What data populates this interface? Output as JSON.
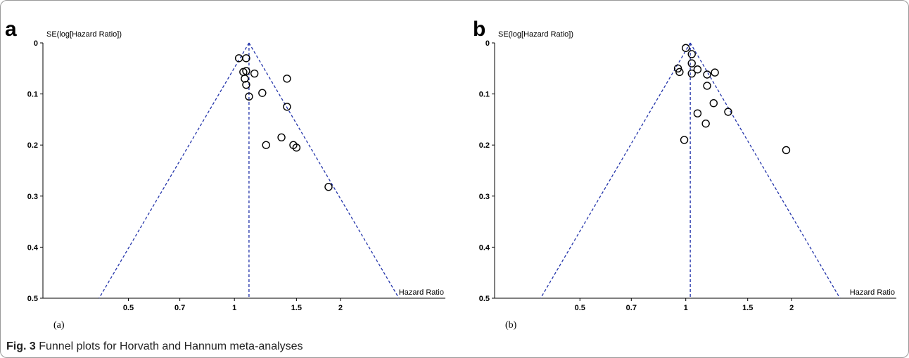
{
  "caption": {
    "fig_label": "Fig. 3",
    "text": "Funnel plots for Horvath and Hannum meta-analyses"
  },
  "colors": {
    "funnel": "#2233aa",
    "points": "#000000",
    "axis": "#000000"
  },
  "chart_data": [
    {
      "type": "scatter",
      "panel": "a",
      "sublabel": "(a)",
      "ylabel": "SE(log[Hazard Ratio])",
      "xlabel": "Hazard Ratio",
      "x_scale": "log",
      "x_ticks": [
        {
          "value": 0.5,
          "label": "0.5"
        },
        {
          "value": 0.7,
          "label": "0.7"
        },
        {
          "value": 1,
          "label": "1"
        },
        {
          "value": 1.5,
          "label": "1.5"
        },
        {
          "value": 2,
          "label": "2"
        }
      ],
      "y_ticks": [
        {
          "value": 0,
          "label": "0"
        },
        {
          "value": 0.1,
          "label": "0.1"
        },
        {
          "value": 0.2,
          "label": "0.2"
        },
        {
          "value": 0.3,
          "label": "0.3"
        },
        {
          "value": 0.4,
          "label": "0.4"
        },
        {
          "value": 0.5,
          "label": "0.5"
        }
      ],
      "ylim": [
        0,
        0.5
      ],
      "xlim": [
        0.286,
        3.97
      ],
      "y_inverted": true,
      "pooled_effect": 1.1,
      "points": [
        {
          "x": 1.03,
          "y": 0.03
        },
        {
          "x": 1.08,
          "y": 0.03
        },
        {
          "x": 1.06,
          "y": 0.057
        },
        {
          "x": 1.08,
          "y": 0.055
        },
        {
          "x": 1.14,
          "y": 0.06
        },
        {
          "x": 1.07,
          "y": 0.07
        },
        {
          "x": 1.08,
          "y": 0.082
        },
        {
          "x": 1.1,
          "y": 0.105
        },
        {
          "x": 1.2,
          "y": 0.098
        },
        {
          "x": 1.41,
          "y": 0.07
        },
        {
          "x": 1.41,
          "y": 0.125
        },
        {
          "x": 1.36,
          "y": 0.185
        },
        {
          "x": 1.23,
          "y": 0.2
        },
        {
          "x": 1.47,
          "y": 0.2
        },
        {
          "x": 1.5,
          "y": 0.205
        },
        {
          "x": 1.85,
          "y": 0.282
        }
      ]
    },
    {
      "type": "scatter",
      "panel": "b",
      "sublabel": "(b)",
      "ylabel": "SE(log[Hazard Ratio])",
      "xlabel": "Hazard Ratio",
      "x_scale": "log",
      "x_ticks": [
        {
          "value": 0.5,
          "label": "0.5"
        },
        {
          "value": 0.7,
          "label": "0.7"
        },
        {
          "value": 1,
          "label": "1"
        },
        {
          "value": 1.5,
          "label": "1.5"
        },
        {
          "value": 2,
          "label": "2"
        }
      ],
      "y_ticks": [
        {
          "value": 0,
          "label": "0"
        },
        {
          "value": 0.1,
          "label": "0.1"
        },
        {
          "value": 0.2,
          "label": "0.2"
        },
        {
          "value": 0.3,
          "label": "0.3"
        },
        {
          "value": 0.4,
          "label": "0.4"
        },
        {
          "value": 0.5,
          "label": "0.5"
        }
      ],
      "ylim": [
        0,
        0.5
      ],
      "xlim": [
        0.286,
        3.97
      ],
      "y_inverted": true,
      "pooled_effect": 1.03,
      "points": [
        {
          "x": 1.0,
          "y": 0.01
        },
        {
          "x": 1.04,
          "y": 0.022
        },
        {
          "x": 1.04,
          "y": 0.04
        },
        {
          "x": 0.95,
          "y": 0.05
        },
        {
          "x": 0.96,
          "y": 0.057
        },
        {
          "x": 1.08,
          "y": 0.052
        },
        {
          "x": 1.04,
          "y": 0.06
        },
        {
          "x": 1.15,
          "y": 0.062
        },
        {
          "x": 1.21,
          "y": 0.058
        },
        {
          "x": 1.15,
          "y": 0.084
        },
        {
          "x": 1.2,
          "y": 0.118
        },
        {
          "x": 1.08,
          "y": 0.138
        },
        {
          "x": 1.32,
          "y": 0.135
        },
        {
          "x": 1.14,
          "y": 0.158
        },
        {
          "x": 0.99,
          "y": 0.19
        },
        {
          "x": 1.93,
          "y": 0.21
        }
      ]
    }
  ]
}
